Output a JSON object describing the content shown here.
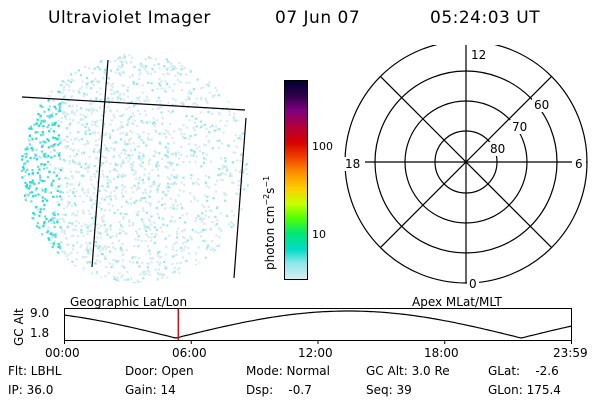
{
  "header": {
    "title": "Ultraviolet Imager",
    "date": "07 Jun 07",
    "time": "05:24:03 UT"
  },
  "colorbar": {
    "unit_prefix": "photon cm",
    "unit_exp1": "−2",
    "unit_mid": "s",
    "unit_exp2": "−1",
    "ticks": [
      "100",
      "10"
    ],
    "colors": [
      "#000033",
      "#33004d",
      "#800080",
      "#b3003c",
      "#d60000",
      "#ee3a00",
      "#ff8c00",
      "#ffcc00",
      "#c8ff00",
      "#55ff00",
      "#00e676",
      "#00dcc8",
      "#8ee6ea",
      "#d8eef0"
    ]
  },
  "polar_grid": {
    "mlt_labels": [
      "12",
      "18",
      "6",
      "0"
    ],
    "lat_labels": [
      "60",
      "70",
      "80"
    ]
  },
  "timeline": {
    "left_title": "Geographic Lat/Lon",
    "right_title": "Apex MLat/MLT",
    "axis_label": "GC Alt",
    "y_ticks": [
      "9.0",
      "1.8"
    ],
    "x_ticks": [
      "00:00",
      "06:00",
      "12:00",
      "18:00",
      "23:59"
    ],
    "current_time_fraction": 0.225
  },
  "status": {
    "flt": "Flt: LBHL",
    "ip": "IP: 36.0",
    "door": "Door: Open",
    "gain": "Gain: 14",
    "mode": "Mode: Normal",
    "dsp": "Dsp:    -0.7",
    "gc_alt": "GC Alt: 3.0 Re",
    "seq": "Seq: 39",
    "glat": "GLat:    -2.6",
    "glon": "GLon: 175.4"
  }
}
